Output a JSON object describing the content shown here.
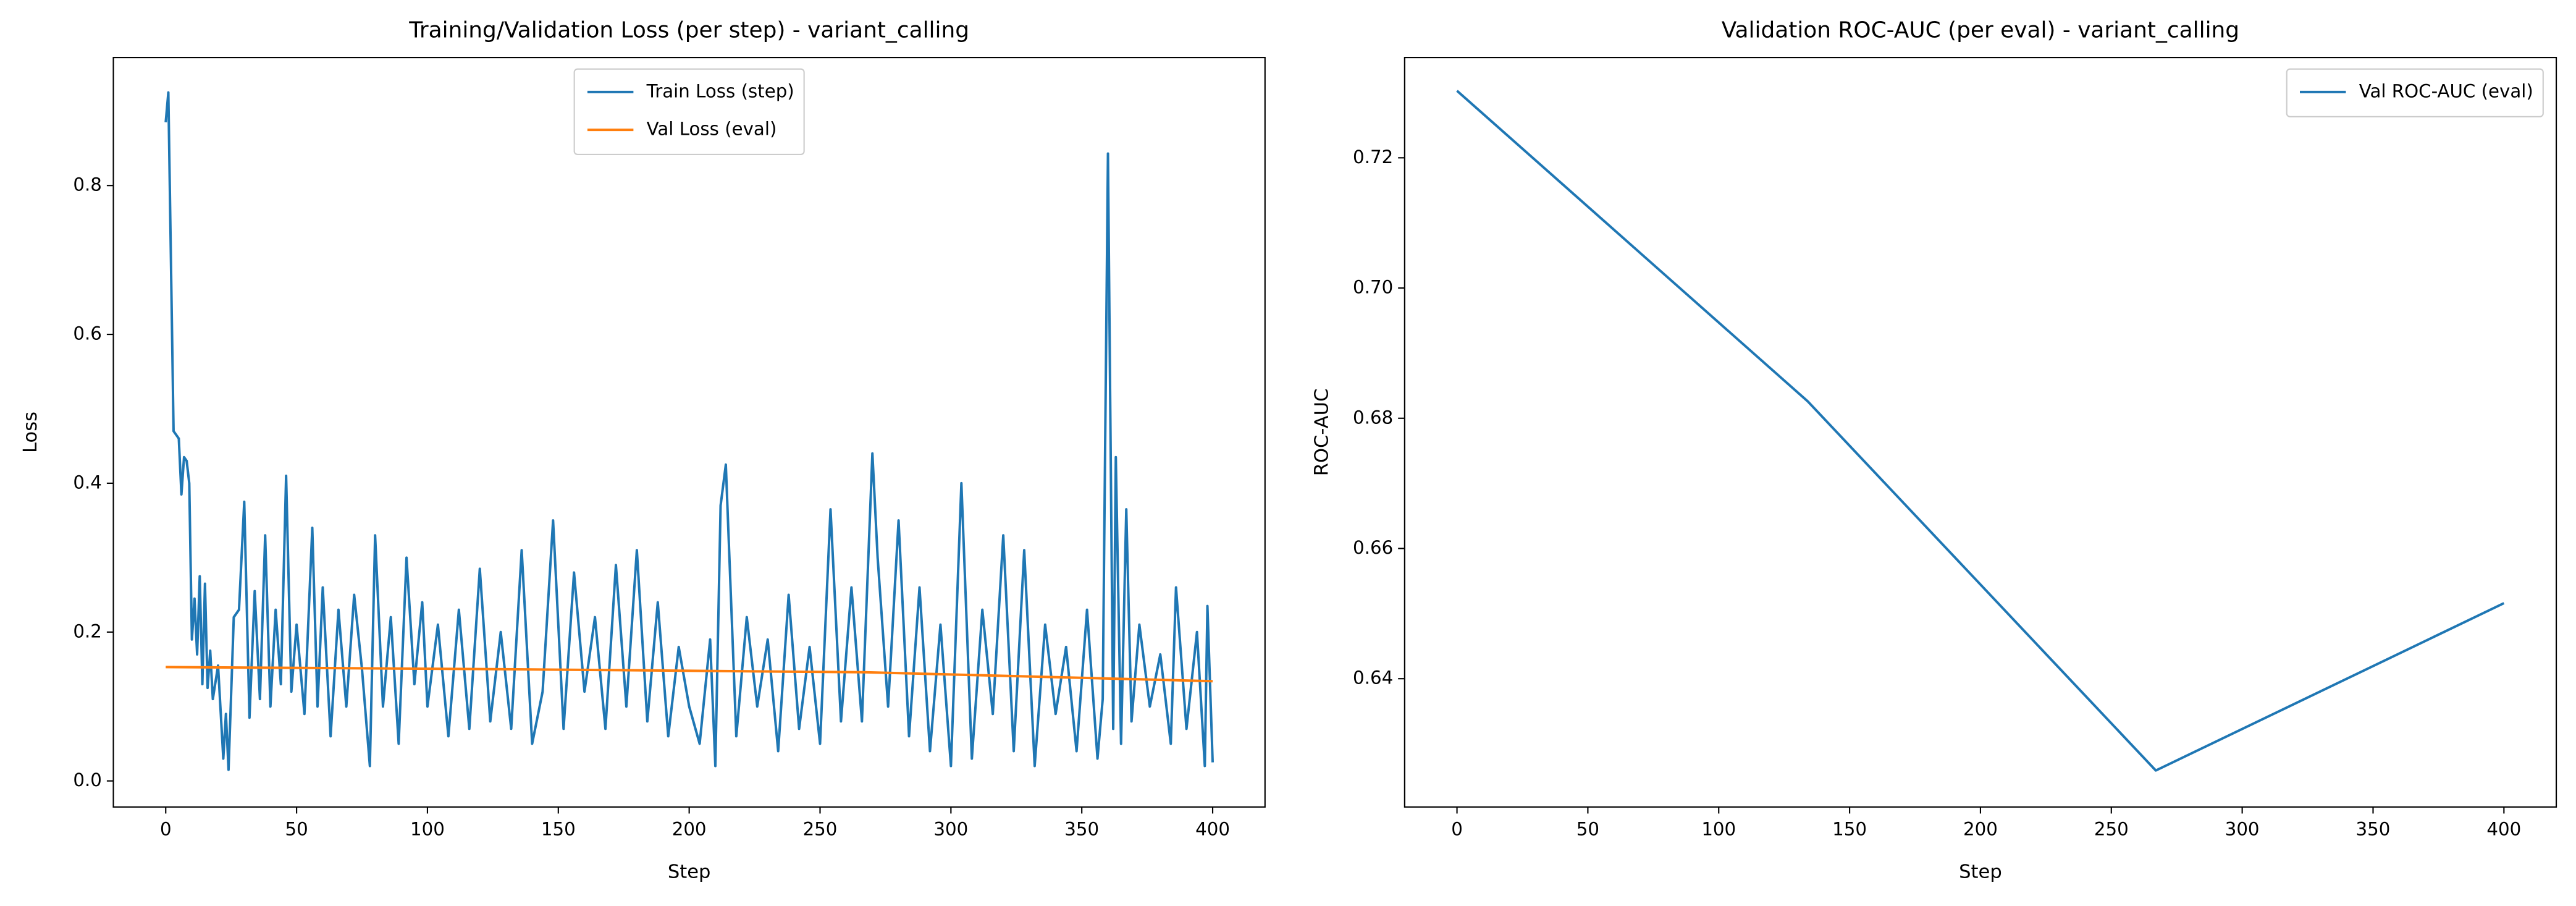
{
  "chart_data": [
    {
      "type": "line",
      "title": "Training/Validation Loss (per step) - variant_calling",
      "x_label": "Step",
      "y_label": "Loss",
      "xlim": [
        -20,
        420
      ],
      "xticks": [
        0,
        50,
        100,
        150,
        200,
        250,
        300,
        350,
        400
      ],
      "ylim": [
        -0.035,
        0.972
      ],
      "yticks": [
        {
          "value": 0,
          "label": "0.0"
        },
        0.2,
        0.4,
        0.6,
        0.8
      ],
      "legend": "upper center",
      "series": [
        {
          "name": "Train Loss (step)",
          "color": "#1f77b4",
          "x": [
            0,
            1,
            3,
            5,
            6,
            7,
            8,
            9,
            10,
            11,
            12,
            13,
            14,
            15,
            16,
            17,
            18,
            20,
            22,
            23,
            24,
            26,
            28,
            30,
            32,
            34,
            36,
            38,
            40,
            42,
            44,
            46,
            48,
            50,
            53,
            56,
            58,
            60,
            63,
            66,
            69,
            72,
            75,
            78,
            80,
            83,
            86,
            89,
            92,
            95,
            98,
            100,
            104,
            108,
            112,
            116,
            120,
            124,
            128,
            132,
            136,
            140,
            144,
            148,
            152,
            156,
            160,
            164,
            168,
            172,
            176,
            180,
            184,
            188,
            192,
            196,
            200,
            204,
            208,
            210,
            212,
            214,
            218,
            222,
            226,
            230,
            234,
            238,
            242,
            246,
            250,
            254,
            258,
            262,
            266,
            270,
            272,
            276,
            280,
            284,
            288,
            292,
            296,
            300,
            304,
            308,
            312,
            316,
            320,
            324,
            328,
            332,
            336,
            340,
            344,
            348,
            352,
            356,
            358,
            360,
            362,
            363,
            365,
            367,
            369,
            372,
            376,
            380,
            384,
            386,
            390,
            394,
            397,
            398,
            400
          ],
          "values": [
            0.885,
            0.925,
            0.47,
            0.46,
            0.385,
            0.435,
            0.43,
            0.4,
            0.19,
            0.245,
            0.17,
            0.275,
            0.13,
            0.265,
            0.125,
            0.175,
            0.11,
            0.155,
            0.03,
            0.09,
            0.015,
            0.22,
            0.23,
            0.375,
            0.085,
            0.255,
            0.11,
            0.33,
            0.1,
            0.23,
            0.13,
            0.41,
            0.12,
            0.21,
            0.09,
            0.34,
            0.1,
            0.26,
            0.06,
            0.23,
            0.1,
            0.25,
            0.15,
            0.02,
            0.33,
            0.1,
            0.22,
            0.05,
            0.3,
            0.13,
            0.24,
            0.1,
            0.21,
            0.06,
            0.23,
            0.07,
            0.285,
            0.08,
            0.2,
            0.07,
            0.31,
            0.05,
            0.12,
            0.35,
            0.07,
            0.28,
            0.12,
            0.22,
            0.07,
            0.29,
            0.1,
            0.31,
            0.08,
            0.24,
            0.06,
            0.18,
            0.1,
            0.05,
            0.19,
            0.02,
            0.37,
            0.425,
            0.06,
            0.22,
            0.1,
            0.19,
            0.04,
            0.25,
            0.07,
            0.18,
            0.05,
            0.365,
            0.08,
            0.26,
            0.08,
            0.44,
            0.3,
            0.1,
            0.35,
            0.06,
            0.26,
            0.04,
            0.21,
            0.02,
            0.4,
            0.03,
            0.23,
            0.09,
            0.33,
            0.04,
            0.31,
            0.02,
            0.21,
            0.09,
            0.18,
            0.04,
            0.23,
            0.03,
            0.11,
            0.843,
            0.07,
            0.435,
            0.05,
            0.365,
            0.08,
            0.21,
            0.1,
            0.17,
            0.05,
            0.26,
            0.07,
            0.2,
            0.02,
            0.235,
            0.025
          ]
        },
        {
          "name": "Val Loss (eval)",
          "color": "#ff7f0e",
          "x": [
            0,
            134,
            267,
            400
          ],
          "values": [
            0.153,
            0.15,
            0.146,
            0.134
          ]
        }
      ]
    },
    {
      "type": "line",
      "title": "Validation ROC-AUC (per eval) - variant_calling",
      "x_label": "Step",
      "y_label": "ROC-AUC",
      "xlim": [
        -20,
        420
      ],
      "xticks": [
        0,
        50,
        100,
        150,
        200,
        250,
        300,
        350,
        400
      ],
      "ylim": [
        0.6203,
        0.7354
      ],
      "yticks": [
        0.64,
        0.66,
        0.68,
        {
          "value": 0.7,
          "label": "0.70"
        },
        0.72
      ],
      "legend": "upper right",
      "series": [
        {
          "name": "Val ROC-AUC (eval)",
          "color": "#1f77b4",
          "x": [
            0,
            134,
            267,
            400
          ],
          "values": [
            0.7303,
            0.6826,
            0.6259,
            0.6516
          ]
        }
      ]
    }
  ]
}
